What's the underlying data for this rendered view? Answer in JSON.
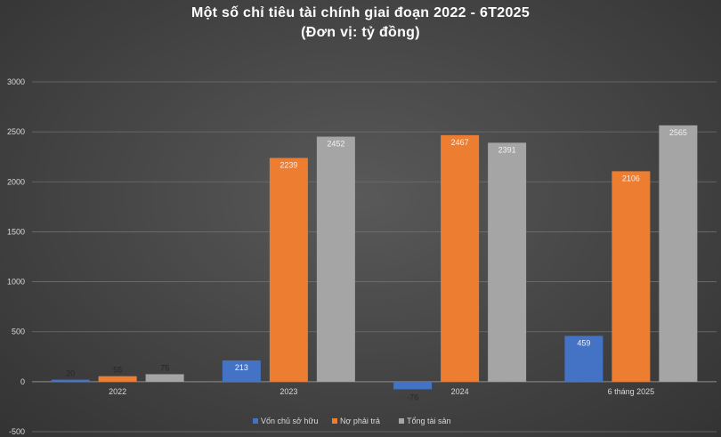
{
  "chart_data": {
    "type": "bar",
    "title": "Một số chỉ tiêu tài chính giai đoạn 2022 - 6T2025",
    "subtitle": "(Đơn vị: tỷ đồng)",
    "categories": [
      "2022",
      "2023",
      "2024",
      "6 tháng 2025"
    ],
    "series": [
      {
        "name": "Vốn chủ sở hữu",
        "color": "#4472c4",
        "values": [
          20,
          213,
          -76,
          459
        ]
      },
      {
        "name": "Nợ phải trả",
        "color": "#ed7d31",
        "values": [
          55,
          2239,
          2467,
          2106
        ]
      },
      {
        "name": "Tổng tài sản",
        "color": "#a5a5a5",
        "values": [
          75,
          2452,
          2391,
          2565
        ]
      }
    ],
    "ylim": [
      -500,
      3000
    ],
    "yticks": [
      -500,
      0,
      500,
      1000,
      1500,
      2000,
      2500,
      3000
    ],
    "grid": true,
    "legend": "bottom"
  }
}
